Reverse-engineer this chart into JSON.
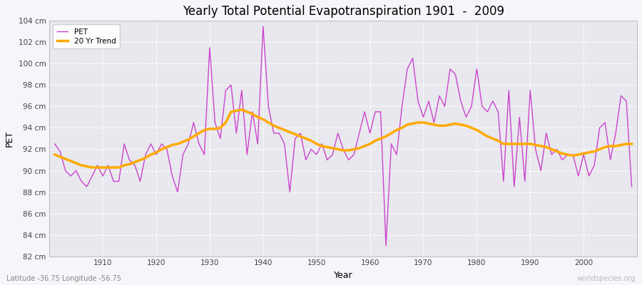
{
  "title": "Yearly Total Potential Evapotranspiration 1901  -  2009",
  "xlabel": "Year",
  "ylabel": "PET",
  "subtitle": "Latitude -36.75 Longitude -56.75",
  "watermark": "worldspecies.org",
  "pet_color": "#cc44cc",
  "trend_color": "#ffaa00",
  "plot_bg_color": "#e8e8ee",
  "fig_bg_color": "#f5f5fa",
  "ylim": [
    82,
    104
  ],
  "yticks": [
    82,
    84,
    86,
    88,
    90,
    92,
    94,
    96,
    98,
    100,
    102,
    104
  ],
  "xlim": [
    1900,
    2010
  ],
  "xticks": [
    1910,
    1920,
    1930,
    1940,
    1950,
    1960,
    1970,
    1980,
    1990,
    2000
  ],
  "years": [
    1901,
    1902,
    1903,
    1904,
    1905,
    1906,
    1907,
    1908,
    1909,
    1910,
    1911,
    1912,
    1913,
    1914,
    1915,
    1916,
    1917,
    1918,
    1919,
    1920,
    1921,
    1922,
    1923,
    1924,
    1925,
    1926,
    1927,
    1928,
    1929,
    1930,
    1931,
    1932,
    1933,
    1934,
    1935,
    1936,
    1937,
    1938,
    1939,
    1940,
    1941,
    1942,
    1943,
    1944,
    1945,
    1946,
    1947,
    1948,
    1949,
    1950,
    1951,
    1952,
    1953,
    1954,
    1955,
    1956,
    1957,
    1958,
    1959,
    1960,
    1961,
    1962,
    1963,
    1964,
    1965,
    1966,
    1967,
    1968,
    1969,
    1970,
    1971,
    1972,
    1973,
    1974,
    1975,
    1976,
    1977,
    1978,
    1979,
    1980,
    1981,
    1982,
    1983,
    1984,
    1985,
    1986,
    1987,
    1988,
    1989,
    1990,
    1991,
    1992,
    1993,
    1994,
    1995,
    1996,
    1997,
    1998,
    1999,
    2000,
    2001,
    2002,
    2003,
    2004,
    2005,
    2006,
    2007,
    2008,
    2009
  ],
  "pet_values": [
    92.5,
    91.8,
    90.0,
    89.5,
    90.0,
    89.0,
    88.5,
    89.5,
    90.5,
    89.5,
    90.5,
    89.0,
    89.0,
    92.5,
    91.0,
    90.5,
    89.0,
    91.5,
    92.5,
    91.5,
    92.5,
    92.0,
    89.5,
    88.0,
    91.5,
    92.5,
    94.5,
    92.5,
    91.5,
    101.5,
    94.5,
    93.0,
    97.5,
    98.0,
    93.5,
    97.5,
    91.5,
    95.5,
    92.5,
    103.5,
    96.0,
    93.5,
    93.5,
    92.5,
    88.0,
    93.0,
    93.5,
    91.0,
    92.0,
    91.5,
    92.5,
    91.0,
    91.5,
    93.5,
    92.0,
    91.0,
    91.5,
    93.5,
    95.5,
    93.5,
    95.5,
    95.5,
    83.0,
    92.5,
    91.5,
    96.0,
    99.5,
    100.5,
    96.5,
    95.0,
    96.5,
    94.5,
    97.0,
    96.0,
    99.5,
    99.0,
    96.5,
    95.0,
    96.0,
    99.5,
    96.0,
    95.5,
    96.5,
    95.5,
    89.0,
    97.5,
    88.5,
    95.0,
    89.0,
    97.5,
    92.0,
    90.0,
    93.5,
    91.5,
    92.0,
    91.0,
    91.5,
    91.5,
    89.5,
    91.5,
    89.5,
    90.5,
    94.0,
    94.5,
    91.0,
    93.5,
    97.0,
    96.5,
    88.5
  ],
  "trend_values": [
    91.5,
    91.3,
    91.1,
    90.9,
    90.7,
    90.5,
    90.4,
    90.3,
    90.3,
    90.3,
    90.3,
    90.3,
    90.3,
    90.5,
    90.6,
    90.8,
    91.0,
    91.2,
    91.5,
    91.7,
    92.0,
    92.2,
    92.4,
    92.5,
    92.7,
    92.9,
    93.2,
    93.5,
    93.8,
    93.9,
    93.9,
    94.0,
    94.5,
    95.5,
    95.6,
    95.7,
    95.5,
    95.3,
    95.0,
    94.8,
    94.5,
    94.2,
    94.0,
    93.8,
    93.6,
    93.4,
    93.2,
    93.0,
    92.8,
    92.5,
    92.3,
    92.2,
    92.1,
    92.0,
    91.9,
    91.9,
    92.0,
    92.1,
    92.3,
    92.5,
    92.8,
    93.0,
    93.2,
    93.5,
    93.8,
    94.0,
    94.3,
    94.4,
    94.5,
    94.5,
    94.4,
    94.3,
    94.2,
    94.2,
    94.3,
    94.4,
    94.3,
    94.2,
    94.0,
    93.8,
    93.5,
    93.2,
    93.0,
    92.8,
    92.5,
    92.5,
    92.5,
    92.5,
    92.5,
    92.5,
    92.4,
    92.3,
    92.2,
    92.0,
    91.8,
    91.6,
    91.5,
    91.4,
    91.5,
    91.6,
    91.7,
    91.8,
    92.0,
    92.2,
    92.3,
    92.3,
    92.4,
    92.5,
    92.5
  ]
}
